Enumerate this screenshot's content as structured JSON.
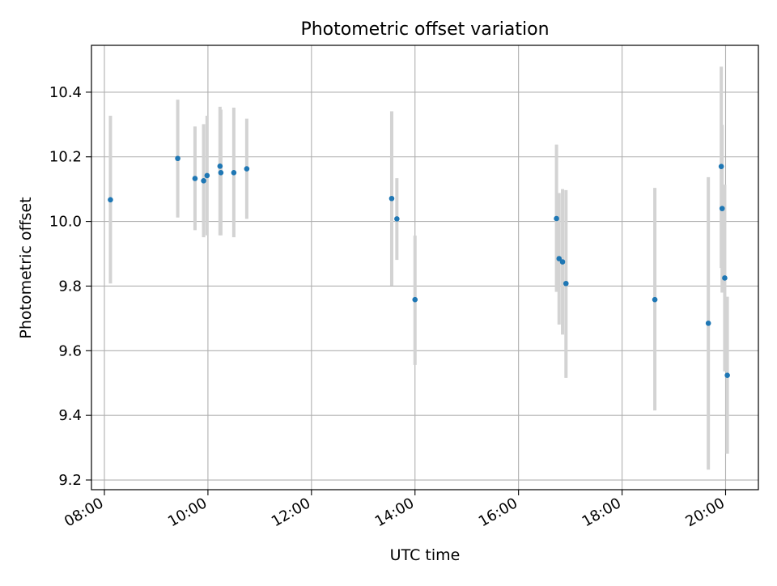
{
  "chart_data": {
    "type": "scatter",
    "title": "Photometric offset variation",
    "xlabel": "UTC time",
    "ylabel": "Photometric offset",
    "x_unit": "hour of day (UTC)",
    "xlim": [
      "07:45",
      "20:38"
    ],
    "ylim": [
      9.17,
      10.545
    ],
    "x_ticks": [
      "08:00",
      "10:00",
      "12:00",
      "14:00",
      "16:00",
      "18:00",
      "20:00"
    ],
    "y_ticks": [
      "9.2",
      "9.4",
      "9.6",
      "9.8",
      "10.0",
      "10.2",
      "10.4"
    ],
    "grid": true,
    "legend": "none",
    "point_color": "#1f77b4",
    "errorbar_color": "#d3d3d3",
    "series": [
      {
        "points": [
          {
            "x": "08:07",
            "y": 10.067,
            "yerr_low": 9.808,
            "yerr_high": 10.327
          },
          {
            "x": "09:25",
            "y": 10.195,
            "yerr_low": 10.012,
            "yerr_high": 10.377
          },
          {
            "x": "09:45",
            "y": 10.133,
            "yerr_low": 9.973,
            "yerr_high": 10.294
          },
          {
            "x": "09:55",
            "y": 10.126,
            "yerr_low": 9.951,
            "yerr_high": 10.301
          },
          {
            "x": "09:59",
            "y": 10.142,
            "yerr_low": 9.957,
            "yerr_high": 10.327
          },
          {
            "x": "10:14",
            "y": 10.171,
            "yerr_low": 9.957,
            "yerr_high": 10.355
          },
          {
            "x": "10:15",
            "y": 10.151,
            "yerr_low": 9.957,
            "yerr_high": 10.346
          },
          {
            "x": "10:30",
            "y": 10.151,
            "yerr_low": 9.951,
            "yerr_high": 10.352
          },
          {
            "x": "10:45",
            "y": 10.163,
            "yerr_low": 10.008,
            "yerr_high": 10.318
          },
          {
            "x": "13:33",
            "y": 10.071,
            "yerr_low": 9.801,
            "yerr_high": 10.341
          },
          {
            "x": "13:39",
            "y": 10.008,
            "yerr_low": 9.881,
            "yerr_high": 10.134
          },
          {
            "x": "14:00",
            "y": 9.758,
            "yerr_low": 9.556,
            "yerr_high": 9.956
          },
          {
            "x": "16:44",
            "y": 10.009,
            "yerr_low": 9.782,
            "yerr_high": 10.238
          },
          {
            "x": "16:47",
            "y": 9.885,
            "yerr_low": 9.681,
            "yerr_high": 10.088
          },
          {
            "x": "16:51",
            "y": 9.875,
            "yerr_low": 9.65,
            "yerr_high": 10.1
          },
          {
            "x": "16:55",
            "y": 9.808,
            "yerr_low": 9.516,
            "yerr_high": 10.097
          },
          {
            "x": "18:38",
            "y": 9.758,
            "yerr_low": 9.415,
            "yerr_high": 10.104
          },
          {
            "x": "19:40",
            "y": 9.685,
            "yerr_low": 9.232,
            "yerr_high": 10.137
          },
          {
            "x": "19:55",
            "y": 10.17,
            "yerr_low": 9.856,
            "yerr_high": 10.479
          },
          {
            "x": "19:56",
            "y": 10.04,
            "yerr_low": 9.78,
            "yerr_high": 10.299
          },
          {
            "x": "19:59",
            "y": 9.825,
            "yerr_low": 9.536,
            "yerr_high": 10.114
          },
          {
            "x": "20:02",
            "y": 9.524,
            "yerr_low": 9.281,
            "yerr_high": 9.767
          }
        ]
      }
    ]
  }
}
